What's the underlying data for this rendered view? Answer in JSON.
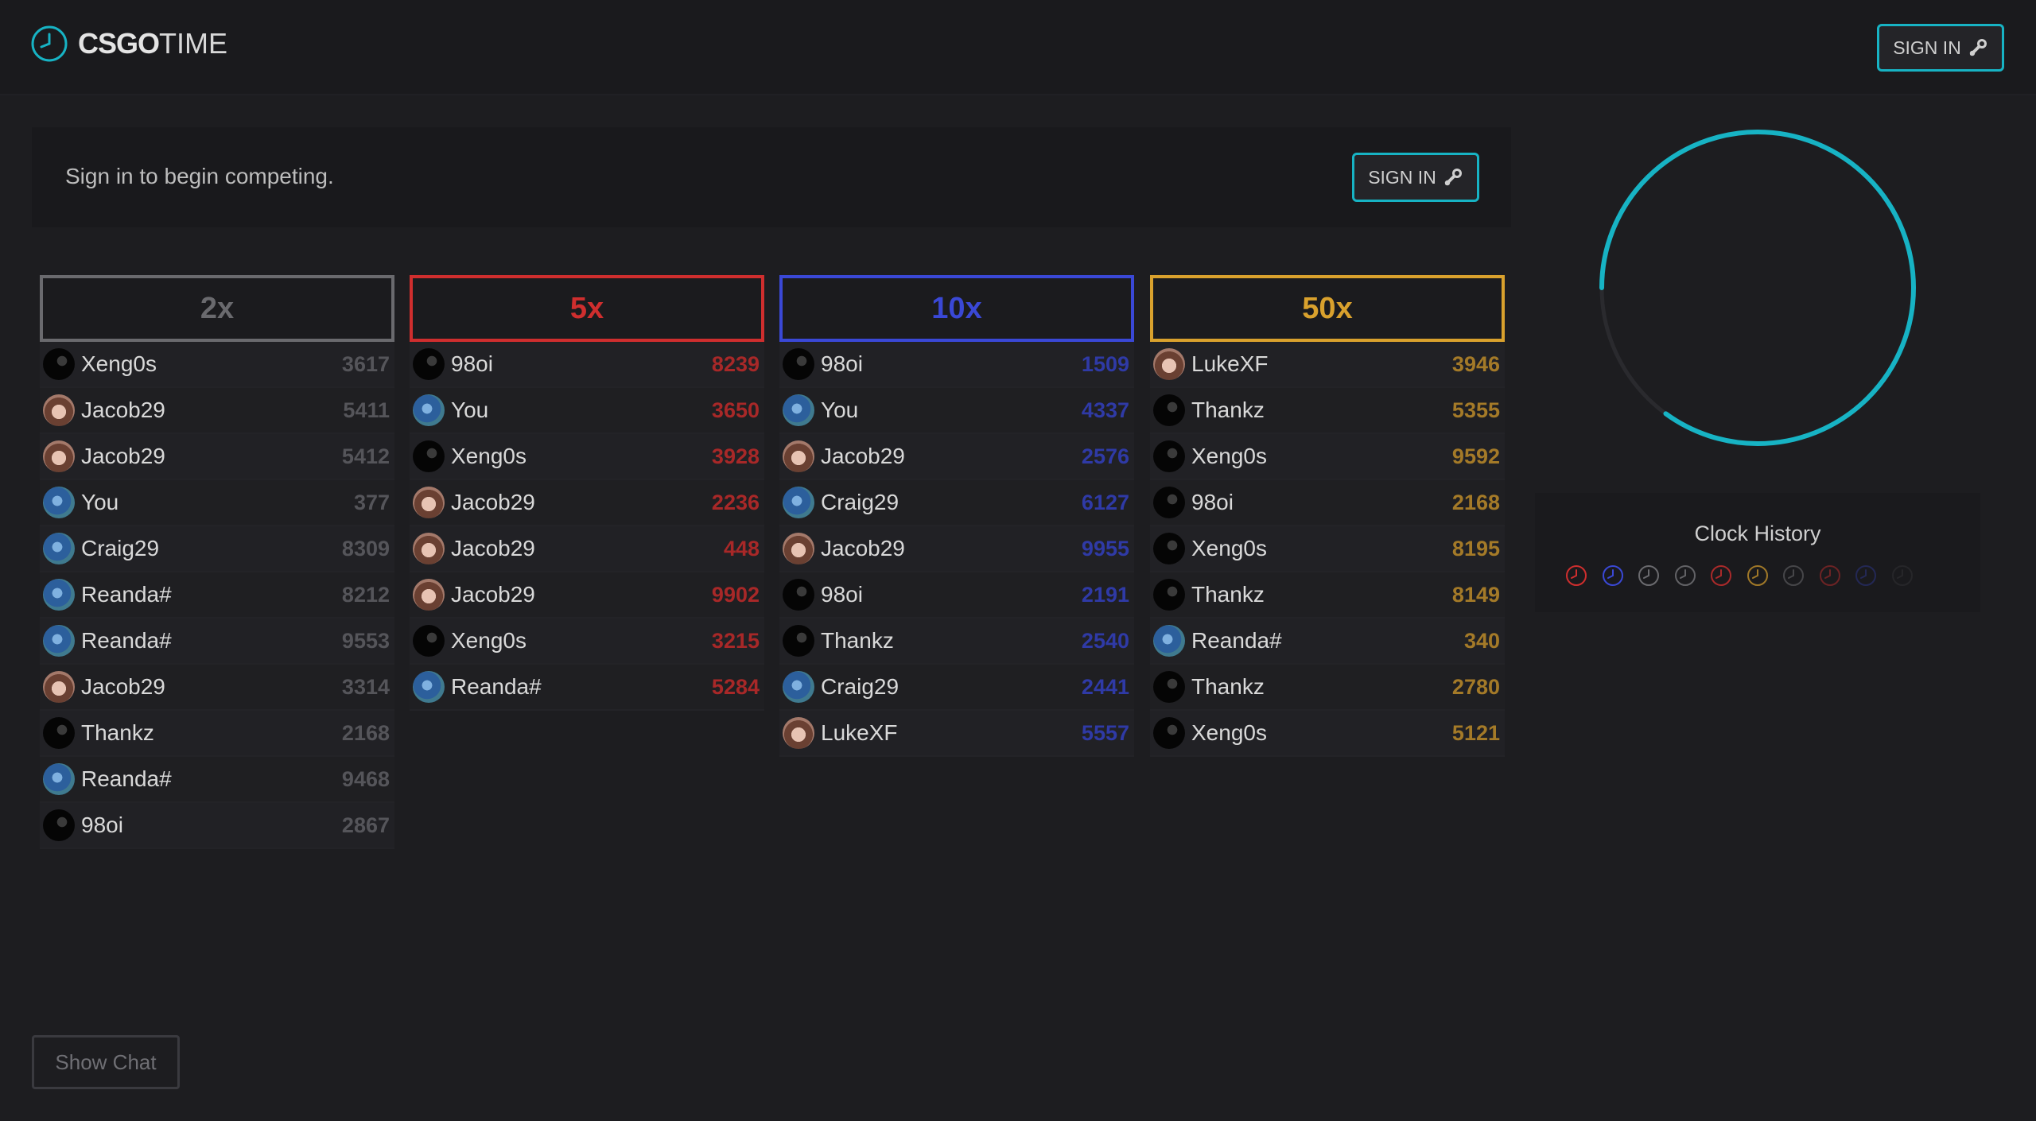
{
  "header": {
    "logo_bold": "CSGO",
    "logo_light": "TIME",
    "signin_label": "SIGN IN"
  },
  "banner": {
    "text": "Sign in to begin competing.",
    "signin_label": "SIGN IN"
  },
  "accent": "#17b3c4",
  "columns": [
    {
      "label": "2x",
      "color": "#6a6a6e",
      "value_color": "#55555a",
      "rows": [
        {
          "name": "Xeng0s",
          "value": "3617",
          "avatar": "dark"
        },
        {
          "name": "Jacob29",
          "value": "5411",
          "avatar": "anime"
        },
        {
          "name": "Jacob29",
          "value": "5412",
          "avatar": "anime"
        },
        {
          "name": "You",
          "value": "377",
          "avatar": "earth"
        },
        {
          "name": "Craig29",
          "value": "8309",
          "avatar": "earth"
        },
        {
          "name": "Reanda#",
          "value": "8212",
          "avatar": "earth"
        },
        {
          "name": "Reanda#",
          "value": "9553",
          "avatar": "earth"
        },
        {
          "name": "Jacob29",
          "value": "3314",
          "avatar": "anime"
        },
        {
          "name": "Thankz",
          "value": "2168",
          "avatar": "dark"
        },
        {
          "name": "Reanda#",
          "value": "9468",
          "avatar": "earth"
        },
        {
          "name": "98oi",
          "value": "2867",
          "avatar": "dark"
        }
      ]
    },
    {
      "label": "5x",
      "color": "#cf2e2e",
      "value_color": "#a82828",
      "rows": [
        {
          "name": "98oi",
          "value": "8239",
          "avatar": "dark"
        },
        {
          "name": "You",
          "value": "3650",
          "avatar": "earth"
        },
        {
          "name": "Xeng0s",
          "value": "3928",
          "avatar": "dark"
        },
        {
          "name": "Jacob29",
          "value": "2236",
          "avatar": "anime"
        },
        {
          "name": "Jacob29",
          "value": "448",
          "avatar": "anime"
        },
        {
          "name": "Jacob29",
          "value": "9902",
          "avatar": "anime"
        },
        {
          "name": "Xeng0s",
          "value": "3215",
          "avatar": "dark"
        },
        {
          "name": "Reanda#",
          "value": "5284",
          "avatar": "earth"
        }
      ]
    },
    {
      "label": "10x",
      "color": "#3a48d6",
      "value_color": "#2f3aa6",
      "rows": [
        {
          "name": "98oi",
          "value": "1509",
          "avatar": "dark"
        },
        {
          "name": "You",
          "value": "4337",
          "avatar": "earth"
        },
        {
          "name": "Jacob29",
          "value": "2576",
          "avatar": "anime"
        },
        {
          "name": "Craig29",
          "value": "6127",
          "avatar": "earth"
        },
        {
          "name": "Jacob29",
          "value": "9955",
          "avatar": "anime"
        },
        {
          "name": "98oi",
          "value": "2191",
          "avatar": "dark"
        },
        {
          "name": "Thankz",
          "value": "2540",
          "avatar": "dark"
        },
        {
          "name": "Craig29",
          "value": "2441",
          "avatar": "earth"
        },
        {
          "name": "LukeXF",
          "value": "5557",
          "avatar": "anime"
        }
      ]
    },
    {
      "label": "50x",
      "color": "#d9a12d",
      "value_color": "#a47a28",
      "rows": [
        {
          "name": "LukeXF",
          "value": "3946",
          "avatar": "anime"
        },
        {
          "name": "Thankz",
          "value": "5355",
          "avatar": "dark"
        },
        {
          "name": "Xeng0s",
          "value": "9592",
          "avatar": "dark"
        },
        {
          "name": "98oi",
          "value": "2168",
          "avatar": "dark"
        },
        {
          "name": "Xeng0s",
          "value": "8195",
          "avatar": "dark"
        },
        {
          "name": "Thankz",
          "value": "8149",
          "avatar": "dark"
        },
        {
          "name": "Reanda#",
          "value": "340",
          "avatar": "earth"
        },
        {
          "name": "Thankz",
          "value": "2780",
          "avatar": "dark"
        },
        {
          "name": "Xeng0s",
          "value": "5121",
          "avatar": "dark"
        }
      ]
    }
  ],
  "clock": {
    "progress": 0.85,
    "color": "#17b3c4",
    "track_color": "#2a2a2e"
  },
  "history": {
    "title": "Clock History",
    "dots": [
      {
        "color": "#cf2e2e",
        "opacity": 1.0
      },
      {
        "color": "#3a48d6",
        "opacity": 1.0
      },
      {
        "color": "#6a6a6e",
        "opacity": 1.0
      },
      {
        "color": "#6a6a6e",
        "opacity": 0.9
      },
      {
        "color": "#cf2e2e",
        "opacity": 0.8
      },
      {
        "color": "#d9a12d",
        "opacity": 0.7
      },
      {
        "color": "#6a6a6e",
        "opacity": 0.55
      },
      {
        "color": "#cf2e2e",
        "opacity": 0.45
      },
      {
        "color": "#3a48d6",
        "opacity": 0.3
      },
      {
        "color": "#6a6a6e",
        "opacity": 0.15
      }
    ]
  },
  "chat": {
    "toggle_label": "Show Chat"
  }
}
